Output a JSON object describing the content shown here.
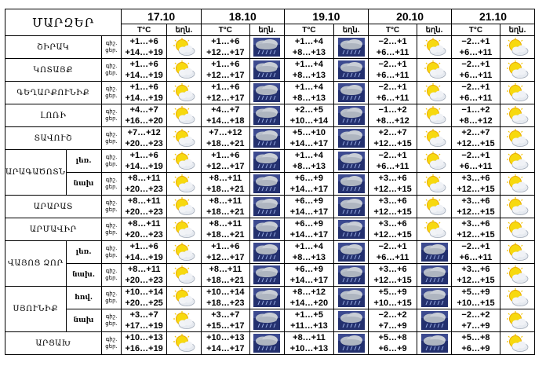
{
  "header": {
    "region_label": "ՄԱՐԶԵՐ",
    "temp_label": "T°C",
    "weather_label": "եղն.",
    "dates": [
      "17.10",
      "18.10",
      "19.10",
      "20.10",
      "21.10"
    ]
  },
  "night_label": "գիշ.",
  "day_label": "ցեր.",
  "rows": [
    {
      "region": "ՇԻՐԱԿ",
      "sub": "",
      "span": 1,
      "days": [
        {
          "n": "+1…+6",
          "d": "+14…+19",
          "icon": "sun-cloud-icon"
        },
        {
          "n": "+1…+6",
          "d": "+12…+17",
          "icon": "cloud-rain-icon"
        },
        {
          "n": "+1…+4",
          "d": "+8…+13",
          "icon": "cloud-rain-icon"
        },
        {
          "n": "−2…+1",
          "d": "+6…+11",
          "icon": "sun-cloud-icon"
        },
        {
          "n": "−2…+1",
          "d": "+6…+11",
          "icon": "sun-cloud-icon"
        }
      ]
    },
    {
      "region": "ԿՈՏԱՅՔ",
      "sub": "",
      "span": 1,
      "days": [
        {
          "n": "+1…+6",
          "d": "+14…+19",
          "icon": "sun-cloud-icon"
        },
        {
          "n": "+1…+6",
          "d": "+12…+17",
          "icon": "cloud-rain-icon"
        },
        {
          "n": "+1…+4",
          "d": "+8…+13",
          "icon": "cloud-rain-icon"
        },
        {
          "n": "−2…+1",
          "d": "+6…+11",
          "icon": "sun-cloud-icon"
        },
        {
          "n": "−2…+1",
          "d": "+6…+11",
          "icon": "sun-cloud-icon"
        }
      ]
    },
    {
      "region": "ԳԵՂԱՐՔՈՒՆԻՔ",
      "sub": "",
      "span": 1,
      "days": [
        {
          "n": "+1…+6",
          "d": "+14…+19",
          "icon": "sun-cloud-icon"
        },
        {
          "n": "+1…+6",
          "d": "+12…+17",
          "icon": "cloud-rain-icon"
        },
        {
          "n": "+1…+4",
          "d": "+8…+13",
          "icon": "cloud-rain-icon"
        },
        {
          "n": "−2…+1",
          "d": "+6…+11",
          "icon": "sun-cloud-icon"
        },
        {
          "n": "−2…+1",
          "d": "+6…+11",
          "icon": "sun-cloud-icon"
        }
      ]
    },
    {
      "region": "ԼՈՌԻ",
      "sub": "",
      "span": 1,
      "days": [
        {
          "n": "+4…+7",
          "d": "+16…+20",
          "icon": "sun-cloud-icon"
        },
        {
          "n": "+4…+7",
          "d": "+14…+18",
          "icon": "cloud-rain-icon"
        },
        {
          "n": "+2…+5",
          "d": "+10…+14",
          "icon": "cloud-rain-icon"
        },
        {
          "n": "−1…+2",
          "d": "+8…+12",
          "icon": "sun-cloud-icon"
        },
        {
          "n": "−1…+2",
          "d": "+8…+12",
          "icon": "sun-cloud-icon"
        }
      ]
    },
    {
      "region": "ՏԱՎՈՒՇ",
      "sub": "",
      "span": 1,
      "days": [
        {
          "n": "+7…+12",
          "d": "+20…+23",
          "icon": "sun-cloud-icon"
        },
        {
          "n": "+7…+12",
          "d": "+18…+21",
          "icon": "cloud-rain-icon"
        },
        {
          "n": "+5…+10",
          "d": "+14…+17",
          "icon": "cloud-rain-icon"
        },
        {
          "n": "+2…+7",
          "d": "+12…+15",
          "icon": "sun-cloud-icon"
        },
        {
          "n": "+2…+7",
          "d": "+12…+15",
          "icon": "sun-cloud-icon"
        }
      ]
    },
    {
      "region": "ԱՐԱԳԱԾՈՏՆ",
      "sub": "լեռ.",
      "span": 2,
      "days": [
        {
          "n": "+1…+6",
          "d": "+14…+19",
          "icon": "sun-cloud-icon"
        },
        {
          "n": "+1…+6",
          "d": "+12…+17",
          "icon": "cloud-rain-icon"
        },
        {
          "n": "+1…+4",
          "d": "+8…+13",
          "icon": "cloud-rain-icon"
        },
        {
          "n": "−2…+1",
          "d": "+6…+11",
          "icon": "sun-cloud-icon"
        },
        {
          "n": "−2…+1",
          "d": "+6…+11",
          "icon": "sun-cloud-icon"
        }
      ]
    },
    {
      "region": "",
      "sub": "նախ",
      "span": 0,
      "days": [
        {
          "n": "+8…+11",
          "d": "+20…+23",
          "icon": "sun-cloud-icon"
        },
        {
          "n": "+8…+11",
          "d": "+18…+21",
          "icon": "cloud-rain-icon"
        },
        {
          "n": "+6…+9",
          "d": "+14…+17",
          "icon": "cloud-rain-icon"
        },
        {
          "n": "+3…+6",
          "d": "+12…+15",
          "icon": "sun-cloud-icon"
        },
        {
          "n": "+3…+6",
          "d": "+12…+15",
          "icon": "sun-cloud-icon"
        }
      ]
    },
    {
      "region": "ԱՐԱՐԱՏ",
      "sub": "",
      "span": 1,
      "days": [
        {
          "n": "+8…+11",
          "d": "+20…+23",
          "icon": "sun-cloud-icon"
        },
        {
          "n": "+8…+11",
          "d": "+18…+21",
          "icon": "cloud-rain-icon"
        },
        {
          "n": "+6…+9",
          "d": "+14…+17",
          "icon": "cloud-rain-icon"
        },
        {
          "n": "+3…+6",
          "d": "+12…+15",
          "icon": "sun-cloud-icon"
        },
        {
          "n": "+3…+6",
          "d": "+12…+15",
          "icon": "sun-cloud-icon"
        }
      ]
    },
    {
      "region": "ԱՐՄԱՎԻՐ",
      "sub": "",
      "span": 1,
      "days": [
        {
          "n": "+8…+11",
          "d": "+20…+23",
          "icon": "sun-cloud-icon"
        },
        {
          "n": "+8…+11",
          "d": "+18…+21",
          "icon": "cloud-rain-icon"
        },
        {
          "n": "+6…+9",
          "d": "+14…+17",
          "icon": "cloud-rain-icon"
        },
        {
          "n": "+3…+6",
          "d": "+12…+15",
          "icon": "sun-cloud-icon"
        },
        {
          "n": "+3…+6",
          "d": "+12…+15",
          "icon": "sun-cloud-icon"
        }
      ]
    },
    {
      "region": "ՎԱՅՈՑ ՁՈՐ",
      "sub": "լեռ.",
      "span": 2,
      "days": [
        {
          "n": "+1…+6",
          "d": "+14…+19",
          "icon": "sun-cloud-icon"
        },
        {
          "n": "+1…+6",
          "d": "+12…+17",
          "icon": "cloud-rain-icon"
        },
        {
          "n": "+1…+4",
          "d": "+8…+13",
          "icon": "cloud-rain-icon"
        },
        {
          "n": "−2…+1",
          "d": "+6…+11",
          "icon": "cloud-rain-icon"
        },
        {
          "n": "−2…+1",
          "d": "+6…+11",
          "icon": "sun-cloud-icon"
        }
      ]
    },
    {
      "region": "",
      "sub": "նախ.",
      "span": 0,
      "days": [
        {
          "n": "+8…+11",
          "d": "+20…+23",
          "icon": "sun-cloud-icon"
        },
        {
          "n": "+8…+11",
          "d": "+18…+21",
          "icon": "cloud-rain-icon"
        },
        {
          "n": "+6…+9",
          "d": "+14…+17",
          "icon": "cloud-rain-icon"
        },
        {
          "n": "+3…+6",
          "d": "+12…+15",
          "icon": "cloud-rain-icon"
        },
        {
          "n": "+3…+6",
          "d": "+12…+15",
          "icon": "sun-cloud-icon"
        }
      ]
    },
    {
      "region": "ՍՅՈՒՆԻՔ",
      "sub": "հով.",
      "span": 2,
      "days": [
        {
          "n": "+10…+14",
          "d": "+20…+25",
          "icon": "sun-cloud-icon"
        },
        {
          "n": "+10…+14",
          "d": "+18…+23",
          "icon": "cloud-rain-icon"
        },
        {
          "n": "+8…+12",
          "d": "+14…+20",
          "icon": "cloud-rain-icon"
        },
        {
          "n": "+5…+9",
          "d": "+10…+15",
          "icon": "cloud-rain-icon"
        },
        {
          "n": "+5…+9",
          "d": "+10…+15",
          "icon": "sun-cloud-icon"
        }
      ]
    },
    {
      "region": "",
      "sub": "նախ",
      "span": 0,
      "days": [
        {
          "n": "+3…+7",
          "d": "+17…+19",
          "icon": "sun-cloud-icon"
        },
        {
          "n": "+3…+7",
          "d": "+15…+17",
          "icon": "cloud-rain-icon"
        },
        {
          "n": "+1…+5",
          "d": "+11…+13",
          "icon": "cloud-rain-icon"
        },
        {
          "n": "−2…+2",
          "d": "+7…+9",
          "icon": "cloud-rain-icon"
        },
        {
          "n": "−2…+2",
          "d": "+7…+9",
          "icon": "sun-cloud-icon"
        }
      ]
    },
    {
      "region": "ԱՐՑԱԽ",
      "sub": "",
      "span": 1,
      "days": [
        {
          "n": "+10…+13",
          "d": "+16…+19",
          "icon": "sun-cloud-icon"
        },
        {
          "n": "+10…+13",
          "d": "+14…+17",
          "icon": "cloud-rain-icon"
        },
        {
          "n": "+8…+11",
          "d": "+10…+13",
          "icon": "cloud-rain-icon"
        },
        {
          "n": "+5…+8",
          "d": "+6…+9",
          "icon": "cloud-rain-icon"
        },
        {
          "n": "+5…+8",
          "d": "+6…+9",
          "icon": "sun-cloud-icon"
        }
      ]
    }
  ]
}
